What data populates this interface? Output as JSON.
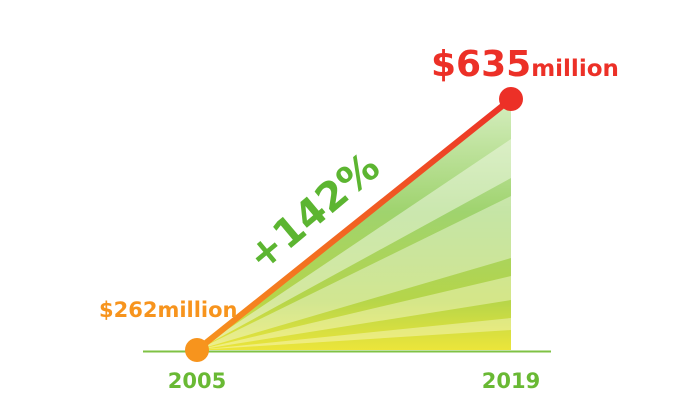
{
  "colors": {
    "background": "#ffffff",
    "baseline": "#7fc244",
    "start": "#f7941d",
    "end": "#ec3027",
    "growth": "#5cb531",
    "axis_text": "#69b934",
    "fill_light": "#cfe9b3",
    "fill_mid": "#8fcb5f",
    "fill_yellow": "#e9e23a"
  },
  "chart_data": {
    "type": "line",
    "x": [
      "2005",
      "2019"
    ],
    "series": [
      {
        "values": [
          262,
          635
        ]
      }
    ],
    "xlim": [
      "2005",
      "2019"
    ],
    "ylim": [
      262,
      635
    ],
    "grid": false,
    "annotations": {
      "start_value": "$262",
      "start_unit": "million",
      "end_value": "$635",
      "end_unit": "million",
      "growth": "+142%"
    }
  }
}
